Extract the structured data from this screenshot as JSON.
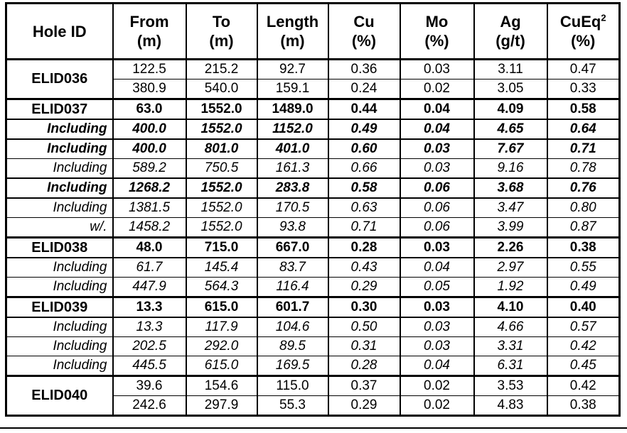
{
  "colors": {
    "background": "#ffffff",
    "border": "#000000",
    "text": "#000000"
  },
  "table": {
    "columns": [
      {
        "title": "Hole ID",
        "unit": ""
      },
      {
        "title": "From",
        "unit": "(m)"
      },
      {
        "title": "To",
        "unit": "(m)"
      },
      {
        "title": "Length",
        "unit": "(m)"
      },
      {
        "title": "Cu",
        "unit": "(%)"
      },
      {
        "title": "Mo",
        "unit": "(%)"
      },
      {
        "title": "Ag",
        "unit": "(g/t)"
      },
      {
        "title": "CuEq",
        "sup": "2",
        "unit": "(%)"
      }
    ],
    "rows": [
      {
        "hole": "ELID036",
        "span": 2,
        "style": "plain",
        "top": "thick",
        "values": [
          "122.5",
          "215.2",
          "92.7",
          "0.36",
          "0.03",
          "3.11",
          "0.47"
        ]
      },
      {
        "style": "plain",
        "top": "thin",
        "values": [
          "380.9",
          "540.0",
          "159.1",
          "0.24",
          "0.02",
          "3.05",
          "0.33"
        ]
      },
      {
        "hole": "ELID037",
        "style": "hole",
        "top": "thick",
        "values": [
          "63.0",
          "1552.0",
          "1489.0",
          "0.44",
          "0.04",
          "4.09",
          "0.58"
        ]
      },
      {
        "hole": "Including",
        "style": "inc-bold",
        "top": "medium",
        "values": [
          "400.0",
          "1552.0",
          "1152.0",
          "0.49",
          "0.04",
          "4.65",
          "0.64"
        ]
      },
      {
        "hole": "Including",
        "style": "inc-bold",
        "top": "medium",
        "values": [
          "400.0",
          "801.0",
          "401.0",
          "0.60",
          "0.03",
          "7.67",
          "0.71"
        ]
      },
      {
        "hole": "Including",
        "style": "inc",
        "top": "thin",
        "values": [
          "589.2",
          "750.5",
          "161.3",
          "0.66",
          "0.03",
          "9.16",
          "0.78"
        ]
      },
      {
        "hole": "Including",
        "style": "inc-bold",
        "top": "medium",
        "values": [
          "1268.2",
          "1552.0",
          "283.8",
          "0.58",
          "0.06",
          "3.68",
          "0.76"
        ]
      },
      {
        "hole": "Including",
        "style": "inc",
        "top": "medium",
        "values": [
          "1381.5",
          "1552.0",
          "170.5",
          "0.63",
          "0.06",
          "3.47",
          "0.80"
        ]
      },
      {
        "hole": "w/.",
        "style": "inc",
        "top": "thin",
        "values": [
          "1458.2",
          "1552.0",
          "93.8",
          "0.71",
          "0.06",
          "3.99",
          "0.87"
        ]
      },
      {
        "hole": "ELID038",
        "style": "hole",
        "top": "thick",
        "values": [
          "48.0",
          "715.0",
          "667.0",
          "0.28",
          "0.03",
          "2.26",
          "0.38"
        ]
      },
      {
        "hole": "Including",
        "style": "inc",
        "top": "medium",
        "values": [
          "61.7",
          "145.4",
          "83.7",
          "0.43",
          "0.04",
          "2.97",
          "0.55"
        ]
      },
      {
        "hole": "Including",
        "style": "inc",
        "top": "thin",
        "values": [
          "447.9",
          "564.3",
          "116.4",
          "0.29",
          "0.05",
          "1.92",
          "0.49"
        ]
      },
      {
        "hole": "ELID039",
        "style": "hole",
        "top": "thick",
        "values": [
          "13.3",
          "615.0",
          "601.7",
          "0.30",
          "0.03",
          "4.10",
          "0.40"
        ]
      },
      {
        "hole": "Including",
        "style": "inc",
        "top": "medium",
        "values": [
          "13.3",
          "117.9",
          "104.6",
          "0.50",
          "0.03",
          "4.66",
          "0.57"
        ]
      },
      {
        "hole": "Including",
        "style": "inc",
        "top": "thin",
        "values": [
          "202.5",
          "292.0",
          "89.5",
          "0.31",
          "0.03",
          "3.31",
          "0.42"
        ]
      },
      {
        "hole": "Including",
        "style": "inc",
        "top": "thin",
        "values": [
          "445.5",
          "615.0",
          "169.5",
          "0.28",
          "0.04",
          "6.31",
          "0.45"
        ]
      },
      {
        "hole": "ELID040",
        "span": 2,
        "style": "plain",
        "top": "thick",
        "values": [
          "39.6",
          "154.6",
          "115.0",
          "0.37",
          "0.02",
          "3.53",
          "0.42"
        ]
      },
      {
        "style": "plain",
        "top": "thin",
        "values": [
          "242.6",
          "297.9",
          "55.3",
          "0.29",
          "0.02",
          "4.83",
          "0.38"
        ]
      }
    ]
  }
}
